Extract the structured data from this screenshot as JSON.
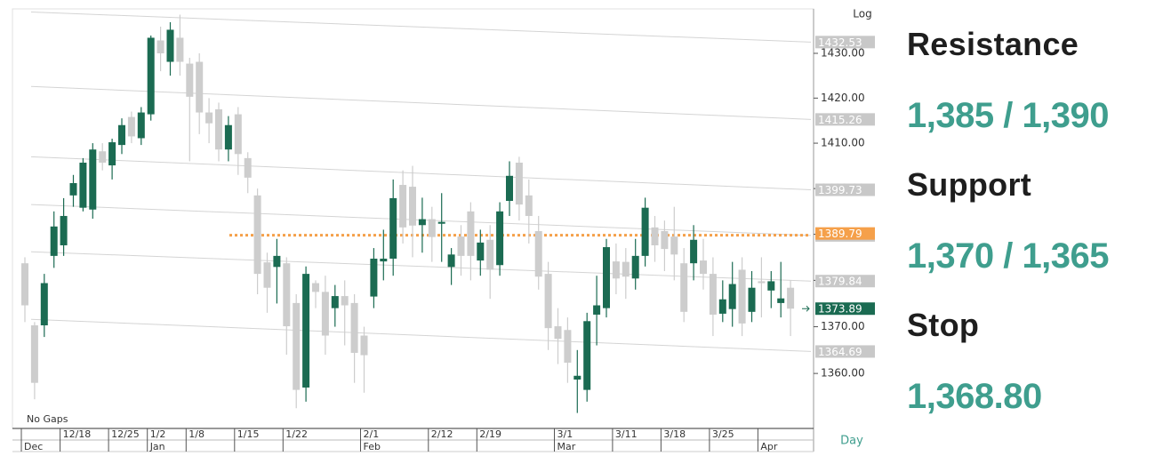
{
  "chart_data": {
    "type": "candlestick",
    "scale": "log",
    "scale_label": "Log",
    "note": "No Gaps",
    "period": "Day",
    "up_color": "#1b6b52",
    "down_color": "#cdcdcd",
    "categories": [
      null,
      null,
      null,
      null,
      "12/18",
      null,
      null,
      null,
      null,
      "12/25",
      null,
      null,
      null,
      "1/2",
      null,
      null,
      null,
      "1/8",
      null,
      null,
      null,
      null,
      "1/15",
      null,
      null,
      null,
      null,
      "1/22",
      null,
      null,
      null,
      null,
      null,
      null,
      null,
      "2/1",
      null,
      null,
      null,
      null,
      null,
      null,
      "2/12",
      null,
      null,
      null,
      null,
      "2/19",
      null,
      null,
      null,
      null,
      null,
      null,
      null,
      "3/1",
      null,
      null,
      null,
      null,
      null,
      "3/11",
      null,
      null,
      null,
      null,
      "3/18",
      null,
      null,
      null,
      null,
      "3/25",
      null,
      null,
      null,
      null,
      null,
      null,
      null,
      null
    ],
    "month_labels": [
      "Dec",
      null,
      null,
      null,
      null,
      null,
      null,
      null,
      null,
      null,
      null,
      null,
      null,
      "Jan",
      null,
      null,
      null,
      null,
      null,
      null,
      null,
      null,
      null,
      null,
      null,
      null,
      null,
      null,
      null,
      null,
      null,
      null,
      null,
      null,
      null,
      "Feb",
      null,
      null,
      null,
      null,
      null,
      null,
      null,
      null,
      null,
      null,
      null,
      null,
      null,
      null,
      null,
      null,
      null,
      null,
      null,
      "Mar",
      null,
      null,
      null,
      null,
      null,
      null,
      null,
      null,
      null,
      null,
      null,
      null,
      null,
      null,
      null,
      null,
      null,
      null,
      null,
      null,
      "Apr",
      null,
      null,
      null
    ],
    "open": [
      1383.7,
      1370.3,
      1370.3,
      1385.3,
      1387.6,
      1398.5,
      1395.8,
      1395.4,
      1408.2,
      1405.1,
      1409.6,
      1415.8,
      1411.1,
      1416.4,
      1432.9,
      1428.1,
      1433.5,
      1427.7,
      1428.1,
      1416.8,
      1417.5,
      1408.6,
      1416.4,
      1406.7,
      1398.5,
      1383.9,
      1382.9,
      1383.7,
      1375.1,
      1357.0,
      1379.4,
      1377.5,
      1374.0,
      1376.6,
      1375.1,
      1368.1,
      1376.5,
      1384.1,
      1384.7,
      1400.8,
      1400.4,
      1392.0,
      1393.3,
      1392.3,
      1382.9,
      1389.5,
      1395.0,
      1384.3,
      1388.8,
      1383.3,
      1397.3,
      1405.7,
      1398.5,
      1390.7,
      1381.4,
      1370.1,
      1369.3,
      1358.7,
      1356.5,
      1372.6,
      1374.0,
      1384.1,
      1384.0,
      1380.4,
      1385.3,
      1391.5,
      1390.7,
      1389.5,
      1383.7,
      1383.7,
      1384.3,
      1381.4,
      1372.8,
      1373.8,
      1382.3,
      1373.2,
      1379.8,
      1377.8,
      1375.1,
      1378.4
    ],
    "high": [
      1385,
      1371,
      1381.4,
      1395,
      1397.9,
      1403,
      1406.7,
      1410,
      1410,
      1411,
      1415.5,
      1417,
      1418,
      1434,
      1436,
      1437,
      1438.7,
      1429,
      1430,
      1420,
      1419,
      1416,
      1418,
      1408,
      1400,
      1386,
      1389,
      1385,
      1377,
      1383,
      1380,
      1381,
      1379,
      1380,
      1377,
      1370,
      1387,
      1391,
      1402,
      1404,
      1405,
      1398,
      1396,
      1399,
      1387,
      1392,
      1397,
      1391,
      1392,
      1397,
      1406,
      1407,
      1402,
      1394,
      1384,
      1374,
      1372,
      1365,
      1373,
      1381,
      1389,
      1388,
      1387,
      1389,
      1398,
      1394,
      1393,
      1396,
      1387,
      1392,
      1389,
      1385,
      1380,
      1384,
      1385,
      1382,
      1385,
      1382,
      1384,
      1380
    ],
    "low": [
      1371,
      1354.5,
      1367.8,
      1382.7,
      1385.3,
      1396,
      1395,
      1393.4,
      1404,
      1402,
      1407.6,
      1410,
      1409.6,
      1415,
      1426,
      1425,
      1425,
      1406,
      1412,
      1410,
      1406,
      1406,
      1403,
      1399,
      1377,
      1373,
      1375,
      1364,
      1352.6,
      1354,
      1374,
      1364,
      1370,
      1366,
      1358,
      1355.9,
      1374,
      1380,
      1381,
      1388,
      1385,
      1386,
      1384,
      1384,
      1379,
      1381,
      1380,
      1381,
      1376,
      1381,
      1394,
      1393,
      1388,
      1378,
      1365,
      1362,
      1358,
      1351.6,
      1354,
      1366,
      1372,
      1377,
      1376,
      1378,
      1383,
      1384,
      1382,
      1380,
      1371,
      1380,
      1378,
      1368,
      1371,
      1370,
      1368,
      1371,
      1372,
      1374,
      1372,
      1368
    ],
    "close": [
      1374.6,
      1358.0,
      1379.4,
      1391.7,
      1394.0,
      1401.2,
      1405.7,
      1408.6,
      1405.7,
      1410.2,
      1414.0,
      1411.5,
      1416.8,
      1433.5,
      1430.0,
      1435.3,
      1428.1,
      1420.3,
      1416.8,
      1414.4,
      1408.6,
      1414.0,
      1407.6,
      1402.4,
      1381.4,
      1378.4,
      1385.3,
      1370.1,
      1356.5,
      1381.4,
      1377.5,
      1368.1,
      1376.6,
      1374.6,
      1364.4,
      1363.9,
      1384.7,
      1384.7,
      1397.9,
      1391.5,
      1391.9,
      1393.3,
      1389.4,
      1392.7,
      1385.6,
      1385.3,
      1385.3,
      1388.2,
      1382.3,
      1395.0,
      1402.8,
      1396.5,
      1394.0,
      1380.8,
      1369.7,
      1367.4,
      1362.3,
      1359.5,
      1371.2,
      1374.6,
      1387.2,
      1380.4,
      1380.8,
      1385.3,
      1395.8,
      1387.6,
      1386.8,
      1385.6,
      1373.2,
      1388.8,
      1381.4,
      1372.6,
      1375.9,
      1379.2,
      1370.7,
      1378.4,
      1379.4,
      1379.8,
      1376.1,
      1373.89
    ],
    "ylim": [
      1348.7,
      1439.6
    ],
    "yticks": [
      {
        "value": 1360,
        "label": "1360.00"
      },
      {
        "value": 1370,
        "label": "1370.00"
      },
      {
        "value": 1380,
        "label": "1380.00"
      },
      {
        "value": 1390,
        "label": "1390.00"
      },
      {
        "value": 1400,
        "label": "1400.00"
      },
      {
        "value": 1410,
        "label": "1410.00"
      },
      {
        "value": 1420,
        "label": "1420.00"
      },
      {
        "value": 1430,
        "label": "1430.00"
      }
    ],
    "trendlines": [
      {
        "start": 1439.3,
        "end": 1432.53
      },
      {
        "start": 1422.6,
        "end": 1415.26
      },
      {
        "start": 1407.0,
        "end": 1399.73
      },
      {
        "start": 1396.5,
        "end": 1389.75
      },
      {
        "start": 1386.2,
        "end": 1379.84
      },
      {
        "start": 1371.6,
        "end": 1364.69
      }
    ],
    "trendline_color": "#d4d4d4",
    "label_box_color": "#c8c8c8",
    "reference_line": {
      "value": 1389.79,
      "color": "#f5a04a"
    },
    "last_price": 1373.89
  },
  "panel": {
    "items": [
      {
        "label": "Resistance",
        "value": "1,385 / 1,390"
      },
      {
        "label": "Support",
        "value": "1,370 / 1,365"
      },
      {
        "label": "Stop",
        "value": "1,368.80"
      }
    ]
  }
}
